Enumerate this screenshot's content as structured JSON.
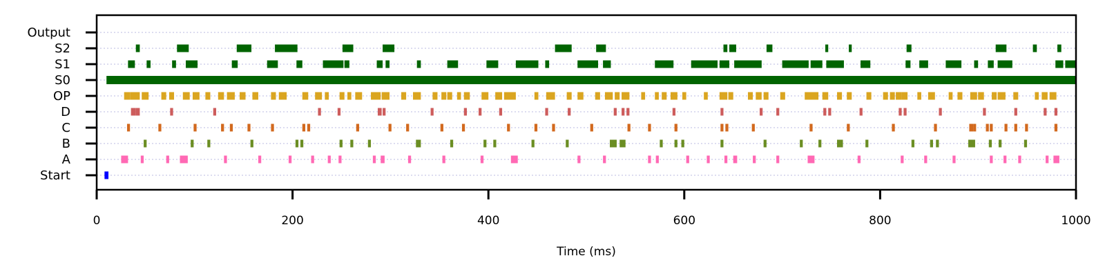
{
  "chart_data": {
    "type": "raster",
    "xlabel": "Time (ms)",
    "xlim": [
      0,
      1000
    ],
    "xticks": [
      0,
      200,
      400,
      600,
      800,
      1000
    ],
    "rows": [
      "Output",
      "S2",
      "S1",
      "S0",
      "OP",
      "D",
      "C",
      "B",
      "A",
      "Start"
    ],
    "colors": {
      "Output": "#006400",
      "S2": "#006400",
      "S1": "#006400",
      "S0": "#006400",
      "OP": "#daa520",
      "D": "#cd5c5c",
      "C": "#d2691e",
      "B": "#6b8e23",
      "A": "#ff69b4",
      "Start": "#0000ff"
    },
    "events": {
      "Output": [],
      "S2": [
        [
          40,
          44
        ],
        [
          82,
          94
        ],
        [
          143,
          158
        ],
        [
          182,
          205
        ],
        [
          251,
          262
        ],
        [
          292,
          304
        ],
        [
          468,
          485
        ],
        [
          510,
          520
        ],
        [
          640,
          644
        ],
        [
          646,
          653
        ],
        [
          684,
          690
        ],
        [
          744,
          747
        ],
        [
          768,
          771
        ],
        [
          827,
          832
        ],
        [
          918,
          929
        ],
        [
          956,
          960
        ],
        [
          981,
          985
        ]
      ],
      "S1": [
        [
          32,
          39
        ],
        [
          51,
          55
        ],
        [
          77,
          81
        ],
        [
          91,
          103
        ],
        [
          138,
          144
        ],
        [
          174,
          185
        ],
        [
          204,
          210
        ],
        [
          231,
          252
        ],
        [
          253,
          258
        ],
        [
          286,
          292
        ],
        [
          295,
          299
        ],
        [
          327,
          331
        ],
        [
          358,
          369
        ],
        [
          398,
          410
        ],
        [
          428,
          451
        ],
        [
          458,
          462
        ],
        [
          491,
          512
        ],
        [
          517,
          525
        ],
        [
          570,
          589
        ],
        [
          607,
          634
        ],
        [
          636,
          646
        ],
        [
          651,
          679
        ],
        [
          700,
          727
        ],
        [
          729,
          741
        ],
        [
          745,
          763
        ],
        [
          780,
          790
        ],
        [
          826,
          831
        ],
        [
          840,
          849
        ],
        [
          867,
          883
        ],
        [
          896,
          900
        ],
        [
          910,
          916
        ],
        [
          920,
          935
        ],
        [
          979,
          987
        ],
        [
          989,
          1000
        ]
      ],
      "S0": [
        [
          10,
          1000
        ]
      ],
      "OP": [
        [
          28,
          34
        ],
        [
          34,
          44
        ],
        [
          46,
          53
        ],
        [
          66,
          71
        ],
        [
          74,
          79
        ],
        [
          88,
          95
        ],
        [
          98,
          105
        ],
        [
          111,
          116
        ],
        [
          124,
          130
        ],
        [
          133,
          141
        ],
        [
          146,
          152
        ],
        [
          159,
          165
        ],
        [
          178,
          183
        ],
        [
          186,
          194
        ],
        [
          210,
          216
        ],
        [
          223,
          230
        ],
        [
          233,
          237
        ],
        [
          248,
          253
        ],
        [
          256,
          260
        ],
        [
          264,
          271
        ],
        [
          280,
          290
        ],
        [
          291,
          299
        ],
        [
          311,
          316
        ],
        [
          323,
          331
        ],
        [
          343,
          348
        ],
        [
          352,
          357
        ],
        [
          358,
          363
        ],
        [
          368,
          372
        ],
        [
          375,
          381
        ],
        [
          393,
          400
        ],
        [
          407,
          414
        ],
        [
          416,
          428
        ],
        [
          447,
          451
        ],
        [
          459,
          468
        ],
        [
          480,
          485
        ],
        [
          491,
          497
        ],
        [
          509,
          514
        ],
        [
          519,
          527
        ],
        [
          529,
          534
        ],
        [
          536,
          544
        ],
        [
          556,
          560
        ],
        [
          570,
          574
        ],
        [
          577,
          582
        ],
        [
          586,
          593
        ],
        [
          598,
          602
        ],
        [
          620,
          624
        ],
        [
          636,
          644
        ],
        [
          645,
          650
        ],
        [
          665,
          670
        ],
        [
          673,
          679
        ],
        [
          681,
          686
        ],
        [
          698,
          703
        ],
        [
          723,
          737
        ],
        [
          741,
          747
        ],
        [
          756,
          761
        ],
        [
          766,
          771
        ],
        [
          786,
          791
        ],
        [
          803,
          808
        ],
        [
          810,
          815
        ],
        [
          816,
          822
        ],
        [
          822,
          828
        ],
        [
          838,
          842
        ],
        [
          849,
          856
        ],
        [
          870,
          874
        ],
        [
          879,
          884
        ],
        [
          892,
          899
        ],
        [
          900,
          906
        ],
        [
          914,
          919
        ],
        [
          920,
          928
        ],
        [
          936,
          941
        ],
        [
          958,
          962
        ],
        [
          965,
          971
        ],
        [
          973,
          980
        ]
      ],
      "D": [
        [
          35,
          40
        ],
        [
          40,
          44
        ],
        [
          75,
          78
        ],
        [
          119,
          122
        ],
        [
          226,
          229
        ],
        [
          246,
          249
        ],
        [
          287,
          291
        ],
        [
          292,
          295
        ],
        [
          341,
          344
        ],
        [
          375,
          378
        ],
        [
          390,
          393
        ],
        [
          411,
          414
        ],
        [
          458,
          461
        ],
        [
          481,
          484
        ],
        [
          528,
          531
        ],
        [
          536,
          539
        ],
        [
          541,
          544
        ],
        [
          588,
          591
        ],
        [
          637,
          640
        ],
        [
          677,
          680
        ],
        [
          694,
          697
        ],
        [
          742,
          745
        ],
        [
          747,
          750
        ],
        [
          779,
          782
        ],
        [
          819,
          822
        ],
        [
          824,
          827
        ],
        [
          860,
          863
        ],
        [
          905,
          908
        ],
        [
          937,
          940
        ],
        [
          967,
          970
        ],
        [
          978,
          981
        ]
      ],
      "C": [
        [
          31,
          34
        ],
        [
          63,
          66
        ],
        [
          99,
          102
        ],
        [
          127,
          130
        ],
        [
          136,
          139
        ],
        [
          154,
          157
        ],
        [
          178,
          181
        ],
        [
          210,
          213
        ],
        [
          215,
          218
        ],
        [
          265,
          268
        ],
        [
          298,
          301
        ],
        [
          316,
          319
        ],
        [
          351,
          354
        ],
        [
          373,
          376
        ],
        [
          419,
          422
        ],
        [
          447,
          450
        ],
        [
          465,
          468
        ],
        [
          504,
          507
        ],
        [
          542,
          545
        ],
        [
          563,
          566
        ],
        [
          590,
          593
        ],
        [
          637,
          640
        ],
        [
          642,
          645
        ],
        [
          669,
          672
        ],
        [
          728,
          731
        ],
        [
          766,
          769
        ],
        [
          812,
          815
        ],
        [
          855,
          858
        ],
        [
          891,
          895
        ],
        [
          895,
          898
        ],
        [
          908,
          911
        ],
        [
          912,
          915
        ],
        [
          927,
          930
        ],
        [
          937,
          940
        ],
        [
          948,
          951
        ],
        [
          978,
          981
        ]
      ],
      "B": [
        [
          48,
          51
        ],
        [
          96,
          99
        ],
        [
          113,
          116
        ],
        [
          157,
          160
        ],
        [
          203,
          206
        ],
        [
          208,
          211
        ],
        [
          248,
          251
        ],
        [
          259,
          262
        ],
        [
          277,
          280
        ],
        [
          326,
          331
        ],
        [
          361,
          364
        ],
        [
          395,
          398
        ],
        [
          405,
          408
        ],
        [
          444,
          447
        ],
        [
          479,
          482
        ],
        [
          524,
          531
        ],
        [
          534,
          540
        ],
        [
          575,
          578
        ],
        [
          590,
          593
        ],
        [
          597,
          600
        ],
        [
          637,
          640
        ],
        [
          681,
          684
        ],
        [
          718,
          721
        ],
        [
          737,
          740
        ],
        [
          756,
          762
        ],
        [
          785,
          788
        ],
        [
          832,
          835
        ],
        [
          851,
          854
        ],
        [
          857,
          860
        ],
        [
          890,
          897
        ],
        [
          911,
          914
        ],
        [
          921,
          924
        ],
        [
          947,
          950
        ]
      ],
      "A": [
        [
          25,
          32
        ],
        [
          45,
          48
        ],
        [
          71,
          74
        ],
        [
          85,
          93
        ],
        [
          130,
          133
        ],
        [
          165,
          168
        ],
        [
          196,
          199
        ],
        [
          219,
          222
        ],
        [
          236,
          239
        ],
        [
          247,
          250
        ],
        [
          282,
          285
        ],
        [
          290,
          294
        ],
        [
          318,
          321
        ],
        [
          353,
          356
        ],
        [
          392,
          395
        ],
        [
          423,
          430
        ],
        [
          491,
          494
        ],
        [
          517,
          520
        ],
        [
          563,
          566
        ],
        [
          571,
          574
        ],
        [
          602,
          605
        ],
        [
          623,
          626
        ],
        [
          641,
          644
        ],
        [
          650,
          654
        ],
        [
          670,
          673
        ],
        [
          694,
          697
        ],
        [
          726,
          733
        ],
        [
          777,
          780
        ],
        [
          821,
          824
        ],
        [
          845,
          848
        ],
        [
          874,
          877
        ],
        [
          912,
          915
        ],
        [
          926,
          929
        ],
        [
          941,
          944
        ],
        [
          969,
          972
        ],
        [
          977,
          983
        ]
      ],
      "Start": [
        [
          8,
          12
        ]
      ]
    }
  }
}
